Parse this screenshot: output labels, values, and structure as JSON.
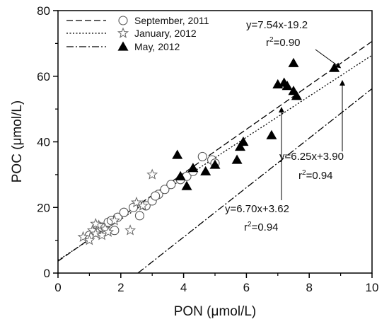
{
  "chart_data": {
    "type": "scatter",
    "xlabel": "PON (μmol/L)",
    "ylabel": "POC (μmol/L)",
    "xlim": [
      0,
      10
    ],
    "ylim": [
      0,
      80
    ],
    "x_ticks": [
      "0",
      "2",
      "4",
      "6",
      "8",
      "10"
    ],
    "y_ticks": [
      "0",
      "20",
      "40",
      "60",
      "80"
    ],
    "grid": false,
    "legend_placement": "top-left",
    "series": [
      {
        "name": "September, 2011",
        "marker": "open-circle",
        "line_style": "dashed",
        "fit": {
          "slope": 6.7,
          "intercept": 3.62
        },
        "points": [
          [
            1.0,
            11.5
          ],
          [
            1.2,
            12.5
          ],
          [
            1.4,
            14.0
          ],
          [
            1.6,
            15.5
          ],
          [
            1.7,
            16.0
          ],
          [
            1.9,
            17.0
          ],
          [
            2.1,
            18.5
          ],
          [
            2.4,
            20.0
          ],
          [
            2.6,
            17.5
          ],
          [
            2.8,
            20.5
          ],
          [
            3.0,
            22.0
          ],
          [
            3.2,
            24.0
          ],
          [
            3.4,
            25.5
          ],
          [
            3.6,
            27.0
          ],
          [
            3.9,
            28.5
          ],
          [
            4.1,
            29.5
          ],
          [
            4.3,
            31.0
          ],
          [
            4.6,
            35.5
          ],
          [
            4.9,
            34.5
          ],
          [
            5.0,
            33.5
          ],
          [
            1.8,
            13.0
          ],
          [
            3.1,
            23.5
          ]
        ]
      },
      {
        "name": "January, 2012",
        "marker": "open-star",
        "line_style": "dotted",
        "fit": {
          "slope": 6.25,
          "intercept": 3.9
        },
        "points": [
          [
            0.8,
            11.0
          ],
          [
            1.0,
            10.0
          ],
          [
            1.1,
            13.0
          ],
          [
            1.2,
            12.0
          ],
          [
            1.3,
            14.5
          ],
          [
            1.4,
            11.5
          ],
          [
            1.5,
            13.5
          ],
          [
            1.6,
            12.5
          ],
          [
            1.8,
            16.0
          ],
          [
            2.3,
            13.0
          ],
          [
            2.5,
            21.5
          ],
          [
            2.7,
            20.5
          ],
          [
            3.0,
            30.0
          ],
          [
            1.2,
            15.0
          ]
        ]
      },
      {
        "name": "May, 2012",
        "marker": "filled-triangle",
        "line_style": "dash-dot",
        "fit": {
          "slope": 7.54,
          "intercept": -19.2
        },
        "points": [
          [
            3.8,
            36.0
          ],
          [
            3.9,
            29.5
          ],
          [
            4.1,
            26.5
          ],
          [
            4.3,
            32.0
          ],
          [
            4.7,
            31.0
          ],
          [
            5.0,
            33.0
          ],
          [
            5.7,
            34.5
          ],
          [
            5.8,
            38.5
          ],
          [
            5.9,
            40.0
          ],
          [
            6.8,
            42.0
          ],
          [
            7.0,
            57.5
          ],
          [
            7.2,
            58.0
          ],
          [
            7.3,
            57.0
          ],
          [
            7.5,
            55.5
          ],
          [
            7.6,
            54.0
          ],
          [
            7.5,
            64.0
          ],
          [
            8.8,
            62.5
          ]
        ]
      }
    ],
    "annotations": [
      {
        "equation": "y=7.54x-19.2",
        "r2_prefix": "r",
        "r2_sup": "2",
        "r2_value": "=0.90"
      },
      {
        "equation": "y=6.25x+3.90",
        "r2_prefix": "r",
        "r2_sup": "2",
        "r2_value": "=0.94"
      },
      {
        "equation": "y=6.70x+3.62",
        "r2_prefix": "r",
        "r2_sup": "2",
        "r2_value": "=0.94"
      }
    ]
  }
}
